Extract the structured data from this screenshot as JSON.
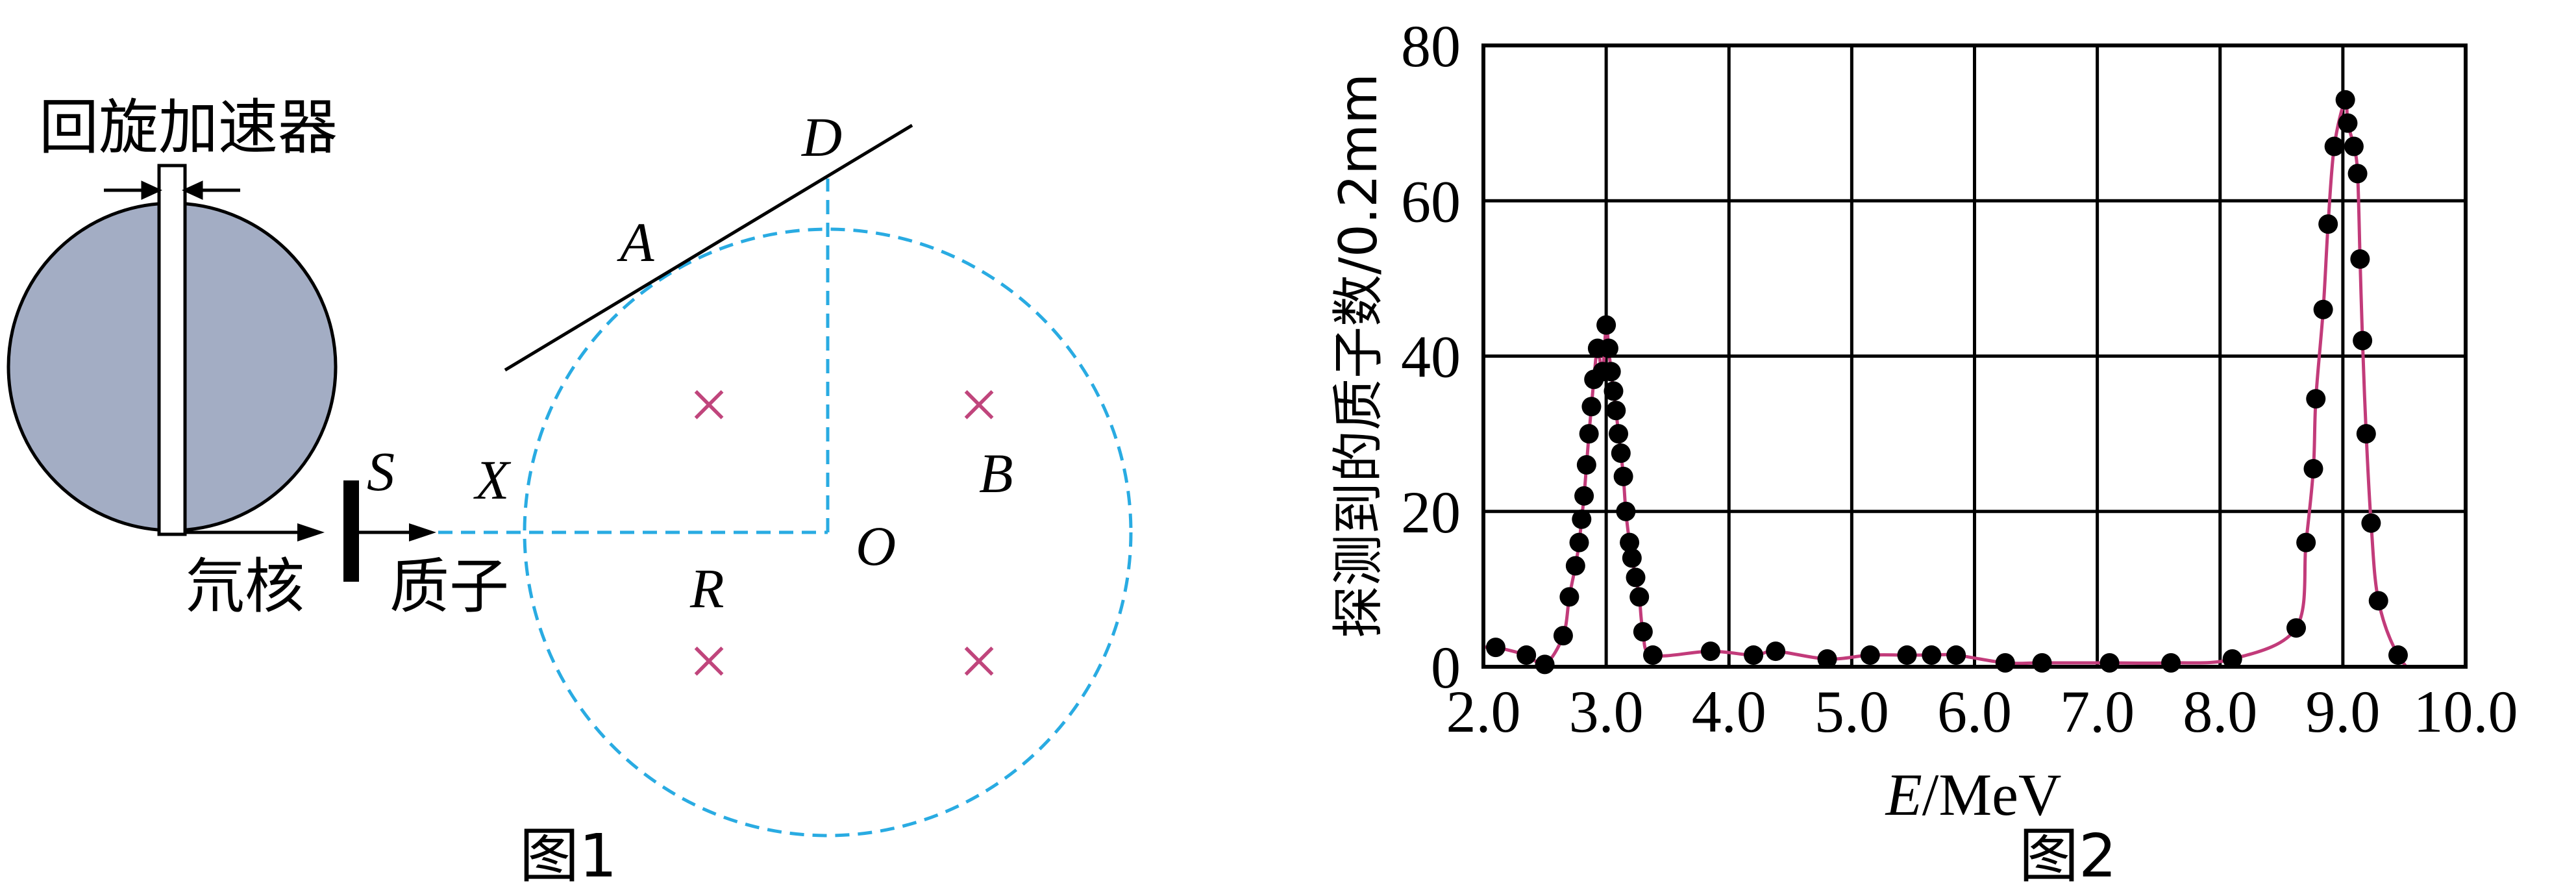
{
  "figure1": {
    "caption": "图1",
    "accelerator_label": "回旋加速器",
    "deuteron_label": "氘核",
    "proton_label": "质子",
    "labels": {
      "S": "S",
      "X": "X",
      "A": "A",
      "D": "D",
      "O": "O",
      "B": "B",
      "R": "R"
    },
    "field_mark": "×",
    "colors": {
      "accelerator_fill": "#a3adc4",
      "circle": "#29abe2",
      "field_mark": "#c0457c"
    }
  },
  "figure2": {
    "caption": "图2",
    "chart_data": {
      "type": "scatter",
      "xlabel_var": "E",
      "xlabel_unit": "/MeV",
      "ylabel": "探测到的质子数/0.2mm",
      "xlim": [
        2.0,
        10.0
      ],
      "ylim": [
        0,
        80
      ],
      "x_ticks": [
        "2.0",
        "3.0",
        "4.0",
        "5.0",
        "6.0",
        "7.0",
        "8.0",
        "9.0",
        "10.0"
      ],
      "y_ticks": [
        "0",
        "20",
        "40",
        "60",
        "80"
      ],
      "grid": true,
      "colors": {
        "curve": "#c23b7a",
        "points": "#000000"
      },
      "points": [
        [
          2.1,
          2.5
        ],
        [
          2.35,
          1.5
        ],
        [
          2.5,
          0.3
        ],
        [
          2.65,
          4
        ],
        [
          2.7,
          9
        ],
        [
          2.75,
          13
        ],
        [
          2.78,
          16
        ],
        [
          2.8,
          19
        ],
        [
          2.82,
          22
        ],
        [
          2.84,
          26
        ],
        [
          2.86,
          30
        ],
        [
          2.88,
          33.5
        ],
        [
          2.9,
          37
        ],
        [
          2.93,
          41
        ],
        [
          2.97,
          38
        ],
        [
          3.0,
          44
        ],
        [
          3.02,
          41
        ],
        [
          3.04,
          38
        ],
        [
          3.06,
          35.5
        ],
        [
          3.08,
          33
        ],
        [
          3.1,
          30
        ],
        [
          3.12,
          27.5
        ],
        [
          3.14,
          24.5
        ],
        [
          3.16,
          20
        ],
        [
          3.19,
          16
        ],
        [
          3.21,
          14
        ],
        [
          3.24,
          11.5
        ],
        [
          3.27,
          9
        ],
        [
          3.3,
          4.5
        ],
        [
          3.38,
          1.5
        ],
        [
          3.85,
          2
        ],
        [
          4.2,
          1.5
        ],
        [
          4.38,
          2
        ],
        [
          4.8,
          1
        ],
        [
          5.15,
          1.5
        ],
        [
          5.45,
          1.5
        ],
        [
          5.65,
          1.5
        ],
        [
          5.85,
          1.5
        ],
        [
          6.25,
          0.5
        ],
        [
          6.55,
          0.5
        ],
        [
          7.1,
          0.5
        ],
        [
          7.6,
          0.5
        ],
        [
          8.1,
          1
        ],
        [
          8.62,
          5
        ],
        [
          8.7,
          16
        ],
        [
          8.76,
          25.5
        ],
        [
          8.78,
          34.5
        ],
        [
          8.84,
          46
        ],
        [
          8.88,
          57
        ],
        [
          8.93,
          67
        ],
        [
          9.02,
          73
        ],
        [
          9.04,
          70
        ],
        [
          9.09,
          67
        ],
        [
          9.12,
          63.5
        ],
        [
          9.14,
          52.5
        ],
        [
          9.16,
          42
        ],
        [
          9.19,
          30
        ],
        [
          9.23,
          18.5
        ],
        [
          9.29,
          8.5
        ],
        [
          9.45,
          1.5
        ]
      ]
    }
  }
}
